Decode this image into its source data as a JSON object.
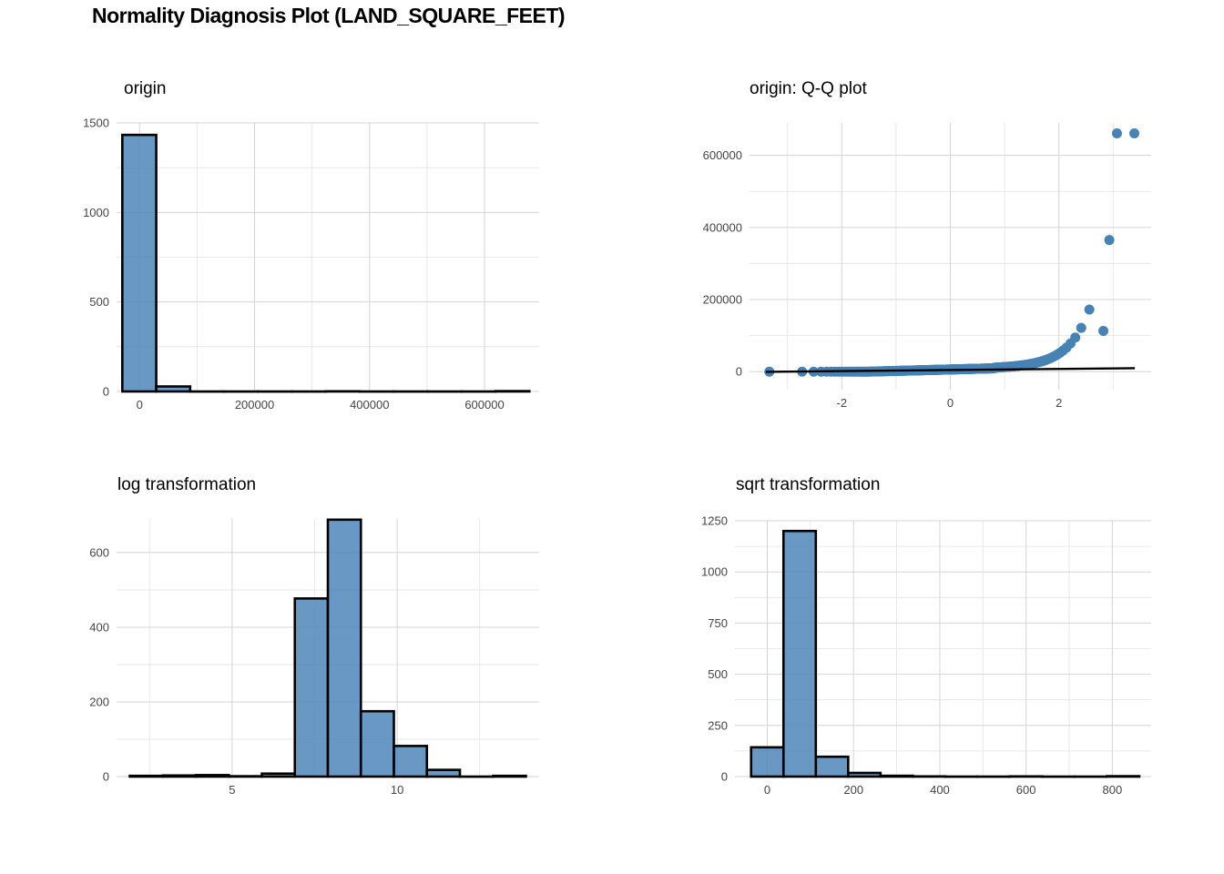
{
  "title": "Normality Diagnosis Plot (LAND_SQUARE_FEET)",
  "colors": {
    "fill": "#4f86bb",
    "point": "#4682b4",
    "outline": "#000000",
    "grid": "#d4d4d4"
  },
  "chart_data": [
    {
      "type": "bar",
      "title": "origin",
      "xlim": [
        -40000,
        695000
      ],
      "ylim": [
        0,
        1500
      ],
      "xticks": [
        0,
        200000,
        400000,
        600000
      ],
      "xtick_labels": [
        "0",
        "200000",
        "400000",
        "600000"
      ],
      "yticks": [
        0,
        500,
        1000,
        1500
      ],
      "ytick_labels": [
        "0",
        "500",
        "1000",
        "1500"
      ],
      "bin_width": 59000,
      "bins": [
        {
          "x0": -30000,
          "x1": 29000,
          "count": 1433
        },
        {
          "x0": 29000,
          "x1": 88000,
          "count": 28
        },
        {
          "x0": 88000,
          "x1": 147000,
          "count": 0
        },
        {
          "x0": 147000,
          "x1": 206000,
          "count": 0
        },
        {
          "x0": 206000,
          "x1": 265000,
          "count": 0
        },
        {
          "x0": 265000,
          "x1": 324000,
          "count": 0
        },
        {
          "x0": 324000,
          "x1": 383000,
          "count": 1
        },
        {
          "x0": 383000,
          "x1": 442000,
          "count": 0
        },
        {
          "x0": 442000,
          "x1": 501000,
          "count": 0
        },
        {
          "x0": 501000,
          "x1": 560000,
          "count": 0
        },
        {
          "x0": 560000,
          "x1": 619000,
          "count": 0
        },
        {
          "x0": 619000,
          "x1": 678000,
          "count": 2
        }
      ]
    },
    {
      "type": "scatter",
      "title": "origin: Q-Q plot",
      "xlim": [
        -3.7,
        3.7
      ],
      "ylim": [
        -50000,
        690000
      ],
      "xticks": [
        -2,
        0,
        2
      ],
      "xtick_labels": [
        "-2",
        "0",
        "2"
      ],
      "yticks": [
        0,
        200000,
        400000,
        600000
      ],
      "ytick_labels": [
        "0",
        "200000",
        "400000",
        "600000"
      ],
      "reference_line": {
        "x": [
          -3.4,
          3.4
        ],
        "y": [
          -500,
          9500
        ]
      },
      "outliers": [
        {
          "x": 2.82,
          "y": 113000
        },
        {
          "x": 2.93,
          "y": 365000
        },
        {
          "x": 3.07,
          "y": 661000
        },
        {
          "x": 3.39,
          "y": 661000
        }
      ]
    },
    {
      "type": "bar",
      "title": "log transformation",
      "xlim": [
        1.5,
        14.3
      ],
      "ylim": [
        0,
        690
      ],
      "xticks": [
        5,
        10
      ],
      "xtick_labels": [
        "5",
        "10"
      ],
      "yticks": [
        0,
        200,
        400,
        600
      ],
      "ytick_labels": [
        "0",
        "200",
        "400",
        "600"
      ],
      "bin_width": 1.0,
      "bins": [
        {
          "x0": 1.9,
          "x1": 2.9,
          "count": 2
        },
        {
          "x0": 2.9,
          "x1": 3.9,
          "count": 3
        },
        {
          "x0": 3.9,
          "x1": 4.9,
          "count": 4
        },
        {
          "x0": 4.9,
          "x1": 5.9,
          "count": 1
        },
        {
          "x0": 5.9,
          "x1": 6.9,
          "count": 8
        },
        {
          "x0": 6.9,
          "x1": 7.9,
          "count": 477
        },
        {
          "x0": 7.9,
          "x1": 8.9,
          "count": 688
        },
        {
          "x0": 8.9,
          "x1": 9.9,
          "count": 175
        },
        {
          "x0": 9.9,
          "x1": 10.9,
          "count": 82
        },
        {
          "x0": 10.9,
          "x1": 11.9,
          "count": 18
        },
        {
          "x0": 11.9,
          "x1": 12.9,
          "count": 0
        },
        {
          "x0": 12.9,
          "x1": 13.9,
          "count": 2
        }
      ]
    },
    {
      "type": "bar",
      "title": "sqrt transformation",
      "xlim": [
        -75,
        890
      ],
      "ylim": [
        0,
        1250
      ],
      "xticks": [
        0,
        200,
        400,
        600,
        800
      ],
      "xtick_labels": [
        "0",
        "200",
        "400",
        "600",
        "800"
      ],
      "yticks": [
        0,
        250,
        500,
        750,
        1000,
        1250
      ],
      "ytick_labels": [
        "0",
        "250",
        "500",
        "750",
        "1000",
        "1250"
      ],
      "bin_width": 75,
      "bins": [
        {
          "x0": -37.5,
          "x1": 37.5,
          "count": 143
        },
        {
          "x0": 37.5,
          "x1": 112.5,
          "count": 1200
        },
        {
          "x0": 112.5,
          "x1": 187.5,
          "count": 97
        },
        {
          "x0": 187.5,
          "x1": 262.5,
          "count": 18
        },
        {
          "x0": 262.5,
          "x1": 337.5,
          "count": 4
        },
        {
          "x0": 337.5,
          "x1": 412.5,
          "count": 1
        },
        {
          "x0": 412.5,
          "x1": 487.5,
          "count": 0
        },
        {
          "x0": 487.5,
          "x1": 562.5,
          "count": 0
        },
        {
          "x0": 562.5,
          "x1": 637.5,
          "count": 1
        },
        {
          "x0": 637.5,
          "x1": 712.5,
          "count": 0
        },
        {
          "x0": 712.5,
          "x1": 787.5,
          "count": 0
        },
        {
          "x0": 787.5,
          "x1": 862.5,
          "count": 2
        }
      ]
    }
  ]
}
